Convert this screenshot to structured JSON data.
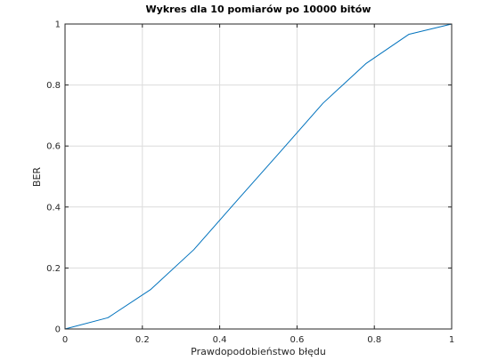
{
  "chart_data": {
    "type": "line",
    "title": "Wykres dla 10 pomiarów po 10000 bitów",
    "xlabel": "Prawdopodobieństwo błędu",
    "ylabel": "BER",
    "xlim": [
      0,
      1
    ],
    "ylim": [
      0,
      1
    ],
    "xticks": [
      0,
      0.2,
      0.4,
      0.6,
      0.8,
      1
    ],
    "xtick_labels": [
      "0",
      "0.2",
      "0.4",
      "0.6",
      "0.8",
      "1"
    ],
    "yticks": [
      0,
      0.2,
      0.4,
      0.6,
      0.8,
      1
    ],
    "ytick_labels": [
      "0",
      "0.2",
      "0.4",
      "0.6",
      "0.8",
      "1"
    ],
    "grid": true,
    "series": [
      {
        "color": "#0072bd",
        "x": [
          0,
          0.111,
          0.222,
          0.333,
          0.444,
          0.556,
          0.667,
          0.778,
          0.889,
          1.0
        ],
        "y": [
          0,
          0.037,
          0.13,
          0.26,
          0.42,
          0.58,
          0.74,
          0.87,
          0.966,
          1.0
        ]
      }
    ]
  },
  "colors": {
    "axis": "#262626",
    "grid": "#dcdcdc",
    "line": "#0072bd",
    "background": "#ffffff"
  }
}
